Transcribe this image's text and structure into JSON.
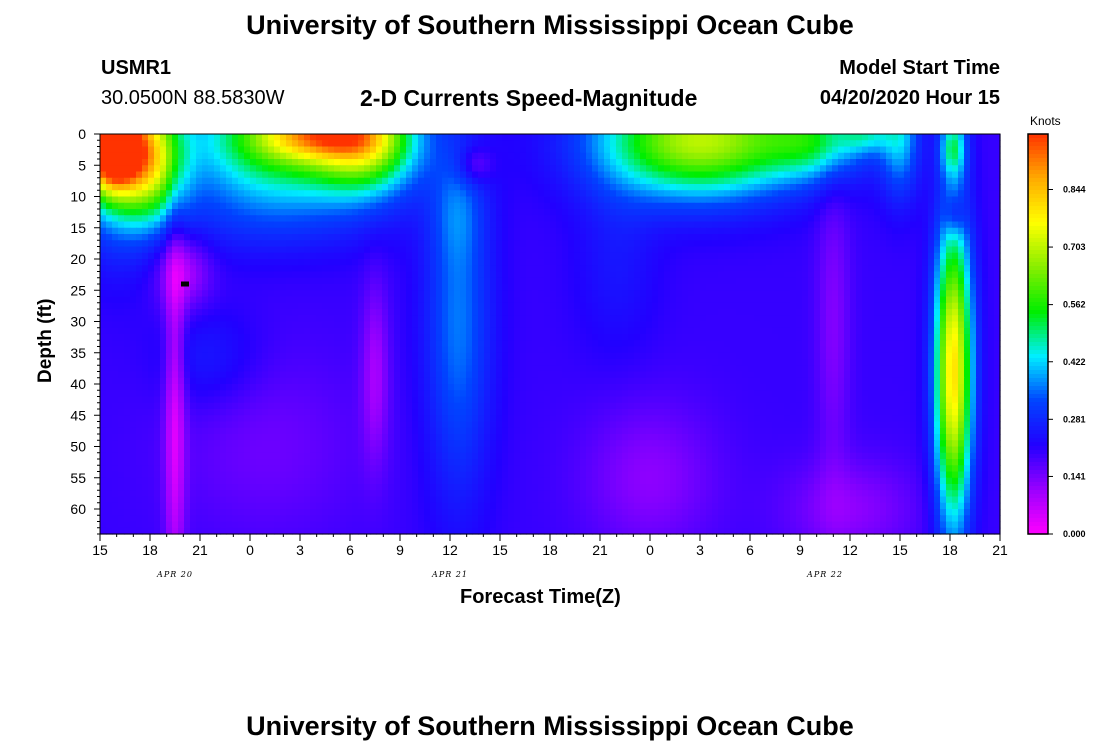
{
  "header": {
    "title": "University of Southern Mississippi Ocean Cube",
    "station": "USMR1",
    "coords": "30.0500N 88.5830W",
    "subtitle": "2-D Currents Speed-Magnitude",
    "start_label": "Model Start Time",
    "start_value": "04/20/2020 Hour 15"
  },
  "footer": {
    "title": "University of Southern Mississippi Ocean Cube"
  },
  "chart_data": {
    "type": "heatmap",
    "xlabel": "Forecast Time(Z)",
    "ylabel": "Depth (ft)",
    "x_range_hours": [
      0,
      54
    ],
    "x_tick_labels": [
      "15",
      "18",
      "21",
      "0",
      "3",
      "6",
      "9",
      "12",
      "15",
      "18",
      "21",
      "0",
      "3",
      "6",
      "9",
      "12",
      "15",
      "18",
      "21"
    ],
    "date_labels": [
      {
        "text": "APR 20",
        "hour": 4.5
      },
      {
        "text": "APR 21",
        "hour": 21
      },
      {
        "text": "APR 22",
        "hour": 43.5
      }
    ],
    "ylim": [
      0,
      64
    ],
    "y_ticks": [
      0,
      5,
      10,
      15,
      20,
      25,
      30,
      35,
      40,
      45,
      50,
      55,
      60
    ],
    "colorbar": {
      "title": "Knots",
      "range": [
        0,
        0.98
      ],
      "ticks": [
        0.0,
        0.141,
        0.281,
        0.422,
        0.562,
        0.703,
        0.844
      ],
      "tick_labels": [
        "0.000",
        "0.141",
        "0.281",
        "0.422",
        "0.562",
        "0.703",
        "0.844"
      ],
      "colormap": [
        "#ff00ff",
        "#9900ff",
        "#2200ff",
        "#0044ff",
        "#00eeff",
        "#00ee00",
        "#88ee00",
        "#ffff00",
        "#ffaa00",
        "#ff3300"
      ]
    },
    "background": 0.2,
    "features": [
      {
        "h": 0.6,
        "d": 2,
        "sh": 1.6,
        "sd": 7,
        "v": 0.75
      },
      {
        "h": 3,
        "d": 4,
        "sh": 2,
        "sd": 9,
        "v": 0.45
      },
      {
        "h": 1,
        "d": 0,
        "sh": 2.5,
        "sd": 16,
        "v": 0.28
      },
      {
        "h": 4.5,
        "d": 45,
        "sh": 0.6,
        "sd": 30,
        "v": -0.15
      },
      {
        "h": 5,
        "d": 22,
        "sh": 1.6,
        "sd": 6,
        "v": -0.12
      },
      {
        "h": 11,
        "d": 1,
        "sh": 5.5,
        "sd": 9,
        "v": 0.38
      },
      {
        "h": 13,
        "d": 0,
        "sh": 3.5,
        "sd": 4,
        "v": 0.3
      },
      {
        "h": 16,
        "d": 1,
        "sh": 3,
        "sd": 8,
        "v": 0.42
      },
      {
        "h": 10,
        "d": 13,
        "sh": 7,
        "sd": 7,
        "v": 0.08
      },
      {
        "h": 6.5,
        "d": 36,
        "sh": 3,
        "sd": 8,
        "v": 0.06
      },
      {
        "h": 16.5,
        "d": 38,
        "sh": 0.8,
        "sd": 14,
        "v": -0.1
      },
      {
        "h": 10,
        "d": 50,
        "sh": 6,
        "sd": 15,
        "v": -0.05
      },
      {
        "h": 21.5,
        "d": 30,
        "sh": 2,
        "sd": 28,
        "v": 0.16
      },
      {
        "h": 21.5,
        "d": 12,
        "sh": 1.5,
        "sd": 8,
        "v": 0.06
      },
      {
        "h": 22.5,
        "d": 5,
        "sh": 1,
        "sd": 3,
        "v": -0.1
      },
      {
        "h": 31,
        "d": 20,
        "sh": 2.5,
        "sd": 15,
        "v": 0.05
      },
      {
        "h": 36,
        "d": 1,
        "sh": 6,
        "sd": 9,
        "v": 0.5
      },
      {
        "h": 43,
        "d": 1,
        "sh": 3,
        "sd": 6,
        "v": 0.22
      },
      {
        "h": 46,
        "d": 0,
        "sh": 1.5,
        "sd": 3,
        "v": 0.15
      },
      {
        "h": 33,
        "d": 55,
        "sh": 4,
        "sd": 12,
        "v": -0.08
      },
      {
        "h": 44,
        "d": 30,
        "sh": 1,
        "sd": 25,
        "v": -0.07
      },
      {
        "h": 45,
        "d": 60,
        "sh": 4,
        "sd": 8,
        "v": -0.08
      },
      {
        "h": 48,
        "d": 0,
        "sh": 1.2,
        "sd": 10,
        "v": 0.2
      },
      {
        "h": 51.2,
        "d": 38,
        "sh": 1.1,
        "sd": 24,
        "v": 0.6
      },
      {
        "h": 51.2,
        "d": 2,
        "sh": 0.8,
        "sd": 5,
        "v": 0.25
      },
      {
        "h": 51.3,
        "d": 13,
        "sh": 0.6,
        "sd": 3,
        "v": -0.1
      }
    ],
    "marker": {
      "hour": 5.1,
      "depth": 24
    }
  }
}
